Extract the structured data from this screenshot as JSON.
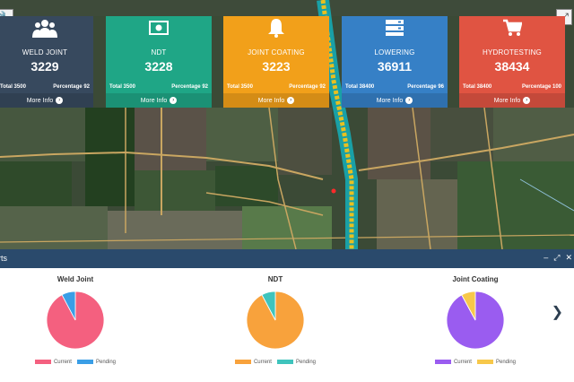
{
  "cards": [
    {
      "id": "weld",
      "title": "WELD JOINT",
      "count": "3229",
      "total": "Total 3500",
      "percentage": "Percentage 92",
      "more": "More Info",
      "icon": "users-icon",
      "color": "#37495e"
    },
    {
      "id": "ndt",
      "title": "NDT",
      "count": "3228",
      "total": "Total 3500",
      "percentage": "Percentage 92",
      "more": "More Info",
      "icon": "money-icon",
      "color": "#1fa686"
    },
    {
      "id": "coating",
      "title": "JOINT COATING",
      "count": "3223",
      "total": "Total 3500",
      "percentage": "Percentage 92",
      "more": "More Info",
      "icon": "bell-icon",
      "color": "#f2a01a"
    },
    {
      "id": "lowering",
      "title": "LOWERING",
      "count": "36911",
      "total": "Total 38400",
      "percentage": "Percentage 96",
      "more": "More Info",
      "icon": "server-icon",
      "color": "#3680c6"
    },
    {
      "id": "hydro",
      "title": "HYDROTESTING",
      "count": "38434",
      "total": "Total 38400",
      "percentage": "Percentage 100",
      "more": "More Info",
      "icon": "cart-icon",
      "color": "#e05442"
    }
  ],
  "panel": {
    "title": "rts",
    "minimize": "–",
    "expand": "⤢",
    "close": "✕"
  },
  "chart_data": [
    {
      "type": "pie",
      "title": "Weld Joint",
      "labels": [
        "Current",
        "Pending"
      ],
      "values": [
        3229,
        271
      ],
      "colors": [
        "#f4607f",
        "#3a9ee6"
      ]
    },
    {
      "type": "pie",
      "title": "NDT",
      "labels": [
        "Current",
        "Pending"
      ],
      "values": [
        3228,
        272
      ],
      "colors": [
        "#f8a23c",
        "#3fc4bd"
      ]
    },
    {
      "type": "pie",
      "title": "Joint Coating",
      "labels": [
        "Current",
        "Pending"
      ],
      "values": [
        3223,
        277
      ],
      "colors": [
        "#9a5cf0",
        "#f7c84a"
      ]
    }
  ],
  "nav": {
    "next": "❯"
  }
}
